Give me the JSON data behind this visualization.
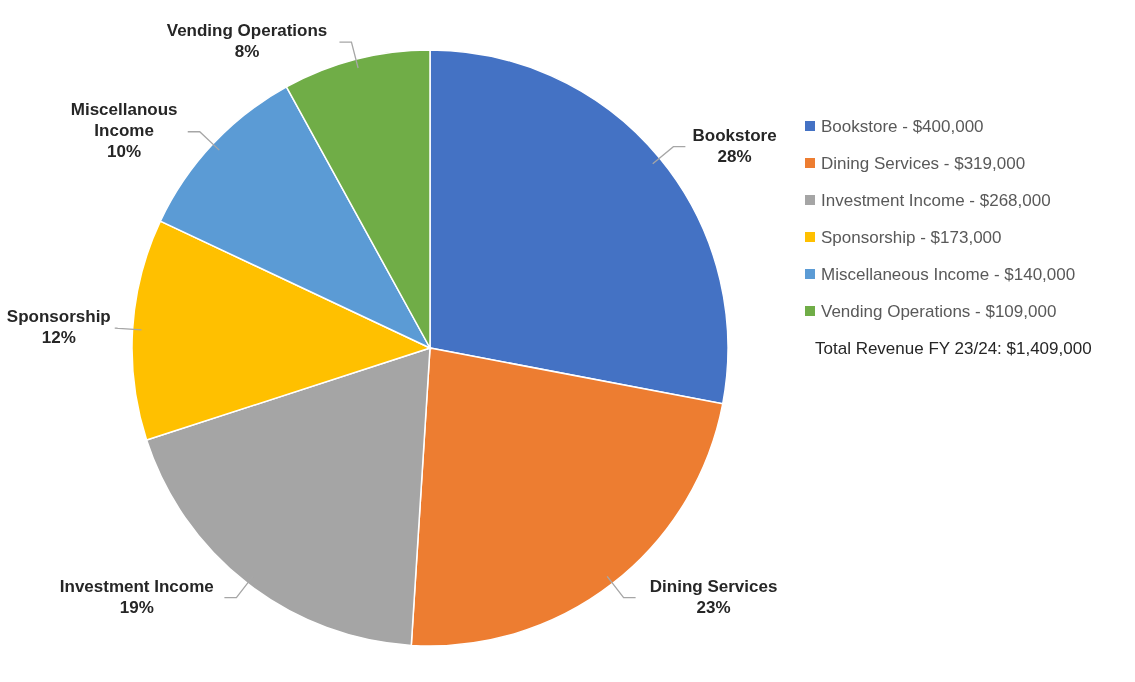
{
  "chart_data": {
    "type": "pie",
    "categories": [
      "Bookstore",
      "Dining Services",
      "Investment Income",
      "Sponsorship",
      "Miscellanous Income",
      "Vending Operations"
    ],
    "values": [
      28,
      23,
      19,
      12,
      10,
      8
    ],
    "colors": [
      "#4472c4",
      "#ed7d31",
      "#a5a5a5",
      "#ffc000",
      "#5b9bd5",
      "#70ad47"
    ],
    "value_labels": [
      "28%",
      "23%",
      "19%",
      "12%",
      "10%",
      "8%"
    ],
    "annotations": [
      "Bookstore - $400,000",
      "Dining Services - $319,000",
      "Investment Income - $268,000",
      "Sponsorship - $173,000",
      "Miscellaneous Income - $140,000",
      "Vending Operations - $109,000",
      "Total Revenue FY 23/24:  $1,409,000"
    ]
  }
}
